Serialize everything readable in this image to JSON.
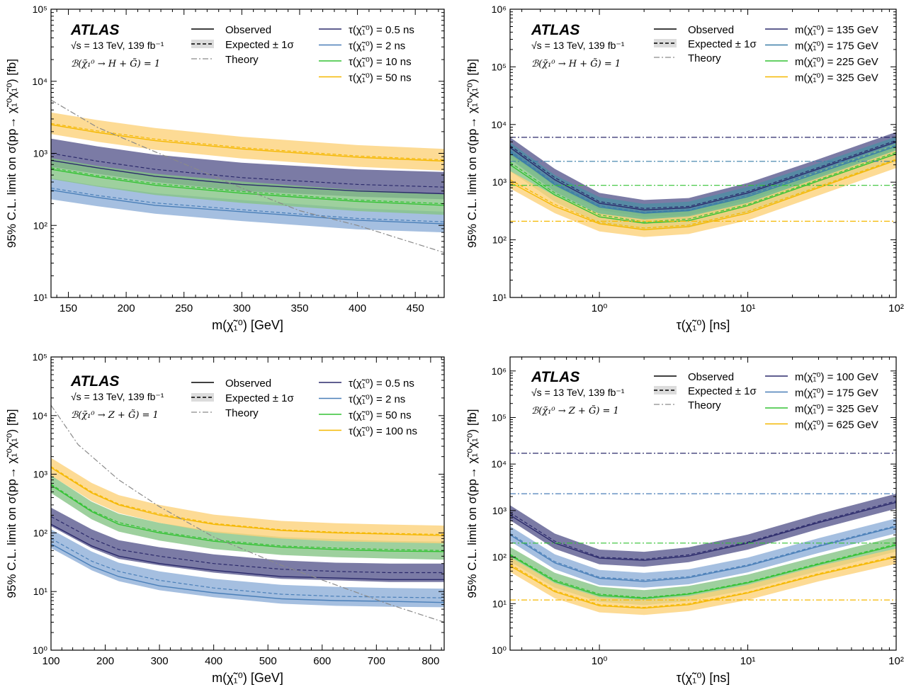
{
  "colors": {
    "navy": "#2b2a6b",
    "navy_band": "#5a5a8e",
    "blue": "#4a7fb8",
    "blue_band": "#8eafd8",
    "teal": "#3a7ea8",
    "teal_band": "#4e8fa4",
    "green": "#33c233",
    "green_band": "#86c486",
    "orange": "#f5b800",
    "orange_band": "#fdd27a",
    "theory": "#8a8a8a"
  },
  "chart_data": [
    {
      "id": "tl",
      "type": "line",
      "atlas": "ATLAS",
      "energy": "√s = 13 TeV, 139 fb⁻¹",
      "branching": "ℬ(χ̃₁⁰ → H + G̃) = 1",
      "legend_common": [
        "Observed",
        "Expected ± 1σ",
        "Theory"
      ],
      "xlabel": "m(χ̃₁⁰) [GeV]",
      "ylabel": "95% C.L. limit on σ(pp→ χ̃₁⁰χ̃₁⁰) [fb]",
      "xscale": "linear",
      "xlim": [
        135,
        475
      ],
      "yscale": "log",
      "ylim": [
        10,
        100000
      ],
      "xticks": [
        150,
        200,
        250,
        300,
        350,
        400,
        450
      ],
      "xtick_labels": [
        "150",
        "200",
        "250",
        "300",
        "350",
        "400",
        "450"
      ],
      "yticks": [
        10,
        100,
        1000,
        10000,
        100000
      ],
      "ytick_labels": [
        "10¹",
        "10²",
        "10³",
        "10⁴",
        "10⁵"
      ],
      "theory": {
        "x": [
          135,
          175,
          225,
          300,
          350,
          400,
          475
        ],
        "y": [
          5500,
          2300,
          1050,
          330,
          160,
          100,
          42
        ]
      },
      "series": [
        {
          "name": "τ(χ̃₁⁰) = 0.5 ns",
          "color": "navy",
          "band_color": "navy_band",
          "x": [
            135,
            175,
            225,
            300,
            400,
            475
          ],
          "obs": [
            800,
            630,
            480,
            370,
            300,
            275
          ],
          "exp": [
            1000,
            780,
            600,
            460,
            370,
            340
          ],
          "lo": [
            650,
            520,
            400,
            300,
            250,
            230
          ],
          "hi": [
            1600,
            1250,
            960,
            740,
            600,
            550
          ]
        },
        {
          "name": "τ(χ̃₁⁰) = 2 ns",
          "color": "blue",
          "band_color": "blue_band",
          "x": [
            135,
            175,
            225,
            300,
            400,
            475
          ],
          "obs": [
            310,
            245,
            190,
            155,
            118,
            105
          ],
          "exp": [
            330,
            260,
            205,
            165,
            125,
            112
          ],
          "lo": [
            230,
            185,
            145,
            115,
            88,
            80
          ],
          "hi": [
            450,
            355,
            280,
            225,
            172,
            155
          ]
        },
        {
          "name": "τ(χ̃₁⁰) = 10 ns",
          "color": "green",
          "band_color": "green_band",
          "x": [
            135,
            175,
            225,
            300,
            400,
            475
          ],
          "obs": [
            600,
            470,
            360,
            280,
            215,
            190
          ],
          "exp": [
            630,
            490,
            380,
            295,
            225,
            200
          ],
          "lo": [
            440,
            345,
            265,
            205,
            158,
            140
          ],
          "hi": [
            860,
            670,
            520,
            405,
            310,
            275
          ]
        },
        {
          "name": "τ(χ̃₁⁰) = 50 ns",
          "color": "orange",
          "band_color": "orange_band",
          "x": [
            135,
            175,
            225,
            300,
            400,
            475
          ],
          "obs": [
            2500,
            1950,
            1500,
            1150,
            880,
            780
          ],
          "exp": [
            2600,
            2050,
            1580,
            1200,
            920,
            810
          ],
          "lo": [
            1850,
            1450,
            1120,
            850,
            650,
            575
          ],
          "hi": [
            3700,
            2900,
            2250,
            1700,
            1300,
            1150
          ]
        }
      ]
    },
    {
      "id": "tr",
      "type": "line",
      "atlas": "ATLAS",
      "energy": "√s = 13 TeV, 139 fb⁻¹",
      "branching": "ℬ(χ̃₁⁰ → H + G̃) = 1",
      "legend_common": [
        "Observed",
        "Expected ± 1σ",
        "Theory"
      ],
      "xlabel": "τ(χ̃₁⁰) [ns]",
      "ylabel": "95% C.L. limit on σ(pp→ χ̃₁⁰χ̃₁⁰) [fb]",
      "xscale": "log",
      "xlim": [
        0.25,
        100
      ],
      "yscale": "log",
      "ylim": [
        10,
        1000000
      ],
      "xticks": [
        1,
        10,
        100
      ],
      "xtick_labels": [
        "10⁰",
        "10¹",
        "10²"
      ],
      "yticks": [
        10,
        100,
        1000,
        10000,
        100000,
        1000000
      ],
      "ytick_labels": [
        "10¹",
        "10²",
        "10³",
        "10⁴",
        "10⁵",
        "10⁶"
      ],
      "series": [
        {
          "name": "m(χ̃₁⁰) = 135 GeV",
          "color": "navy",
          "band_color": "navy_band",
          "theory": 6000,
          "x": [
            0.25,
            0.5,
            1,
            2,
            4,
            10,
            30,
            100
          ],
          "obs": [
            4000,
            1100,
            430,
            330,
            360,
            650,
            1700,
            5000
          ],
          "exp": [
            4300,
            1200,
            460,
            350,
            380,
            690,
            1800,
            5300
          ],
          "lo": [
            3000,
            850,
            330,
            250,
            270,
            490,
            1280,
            3800
          ],
          "hi": [
            6000,
            1700,
            650,
            490,
            530,
            970,
            2500,
            7400
          ]
        },
        {
          "name": "m(χ̃₁⁰) = 175 GeV",
          "color": "teal",
          "band_color": "teal_band",
          "theory": 2300,
          "x": [
            0.25,
            0.5,
            1,
            2,
            4,
            10,
            30,
            100
          ],
          "obs": [
            3300,
            900,
            370,
            290,
            320,
            560,
            1450,
            4200
          ],
          "exp": [
            3500,
            950,
            390,
            300,
            330,
            590,
            1520,
            4400
          ],
          "lo": [
            2500,
            680,
            280,
            215,
            235,
            420,
            1080,
            3150
          ],
          "hi": [
            4900,
            1330,
            550,
            420,
            460,
            830,
            2130,
            6150
          ]
        },
        {
          "name": "m(χ̃₁⁰) = 225 GeV",
          "color": "green",
          "band_color": "green_band",
          "theory": 880,
          "x": [
            0.25,
            0.5,
            1,
            2,
            4,
            10,
            30,
            100
          ],
          "obs": [
            2000,
            600,
            250,
            195,
            215,
            390,
            1050,
            3100
          ],
          "exp": [
            2200,
            650,
            270,
            205,
            230,
            410,
            1100,
            3300
          ],
          "lo": [
            1550,
            460,
            190,
            145,
            162,
            290,
            780,
            2330
          ],
          "hi": [
            3100,
            920,
            380,
            290,
            325,
            580,
            1560,
            4650
          ]
        },
        {
          "name": "m(χ̃₁⁰) = 325 GeV",
          "color": "orange",
          "band_color": "orange_band",
          "theory": 210,
          "x": [
            0.25,
            0.5,
            1,
            2,
            4,
            10,
            30,
            100
          ],
          "obs": [
            1000,
            380,
            190,
            150,
            170,
            290,
            800,
            2400
          ],
          "exp": [
            1100,
            410,
            200,
            160,
            180,
            310,
            840,
            2500
          ],
          "lo": [
            780,
            290,
            140,
            112,
            126,
            218,
            590,
            1760
          ],
          "hi": [
            1560,
            580,
            285,
            226,
            255,
            440,
            1190,
            3550
          ]
        }
      ]
    },
    {
      "id": "bl",
      "type": "line",
      "atlas": "ATLAS",
      "energy": "√s = 13 TeV, 139 fb⁻¹",
      "branching": "ℬ(χ̃₁⁰ → Z + G̃) = 1",
      "legend_common": [
        "Observed",
        "Expected ± 1σ",
        "Theory"
      ],
      "xlabel": "m(χ̃₁⁰) [GeV]",
      "ylabel": "95% C.L. limit on σ(pp→ χ̃₁⁰χ̃₁⁰) [fb]",
      "xscale": "linear",
      "xlim": [
        100,
        825
      ],
      "yscale": "log",
      "ylim": [
        1,
        100000
      ],
      "xticks": [
        100,
        200,
        300,
        400,
        500,
        600,
        700,
        800
      ],
      "xtick_labels": [
        "100",
        "200",
        "300",
        "400",
        "500",
        "600",
        "700",
        "800"
      ],
      "yticks": [
        1,
        10,
        100,
        1000,
        10000,
        100000
      ],
      "ytick_labels": [
        "10⁰",
        "10¹",
        "10²",
        "10³",
        "10⁴",
        "10⁵"
      ],
      "theory": {
        "x": [
          100,
          150,
          225,
          300,
          400,
          525,
          625,
          725,
          825
        ],
        "y": [
          15000,
          3200,
          800,
          280,
          85,
          28,
          13,
          6,
          3
        ]
      },
      "series": [
        {
          "name": "τ(χ̃₁⁰) = 0.5 ns",
          "color": "navy",
          "band_color": "navy_band",
          "x": [
            100,
            175,
            225,
            300,
            400,
            525,
            625,
            725,
            825
          ],
          "obs": [
            140,
            60,
            40,
            30,
            23,
            18,
            17,
            16,
            16
          ],
          "exp": [
            190,
            80,
            52,
            40,
            30,
            24,
            22,
            21,
            21
          ],
          "lo": [
            130,
            55,
            36,
            28,
            21,
            16.5,
            15.5,
            14.5,
            14.5
          ],
          "hi": [
            270,
            115,
            75,
            57,
            43,
            34,
            31,
            30,
            30
          ]
        },
        {
          "name": "τ(χ̃₁⁰) = 2 ns",
          "color": "blue",
          "band_color": "blue_band",
          "x": [
            100,
            175,
            225,
            300,
            400,
            525,
            625,
            725,
            825
          ],
          "obs": [
            65,
            27,
            18,
            12.5,
            9.5,
            7.5,
            7,
            6.8,
            6.5
          ],
          "exp": [
            80,
            33,
            22,
            15.5,
            11.5,
            9,
            8.3,
            8,
            7.8
          ],
          "lo": [
            55,
            23,
            15,
            10.5,
            8,
            6.2,
            5.7,
            5.5,
            5.4
          ],
          "hi": [
            115,
            48,
            31,
            22,
            16.5,
            13,
            12,
            11.5,
            11.2
          ]
        },
        {
          "name": "τ(χ̃₁⁰) = 50 ns",
          "color": "green",
          "band_color": "green_band",
          "x": [
            100,
            175,
            225,
            300,
            400,
            525,
            625,
            725,
            825
          ],
          "obs": [
            650,
            230,
            140,
            100,
            72,
            57,
            52,
            49,
            48
          ],
          "exp": [
            680,
            240,
            150,
            105,
            76,
            60,
            55,
            52,
            50
          ],
          "lo": [
            480,
            170,
            105,
            74,
            53,
            42,
            38.5,
            36.5,
            35
          ],
          "hi": [
            960,
            340,
            212,
            148,
            107,
            85,
            78,
            73,
            71
          ]
        },
        {
          "name": "τ(χ̃₁⁰) = 100 ns",
          "color": "orange",
          "band_color": "orange_band",
          "x": [
            100,
            175,
            225,
            300,
            400,
            525,
            625,
            725,
            825
          ],
          "obs": [
            1300,
            480,
            300,
            200,
            140,
            110,
            100,
            95,
            90
          ],
          "exp": [
            1350,
            500,
            310,
            210,
            145,
            113,
            103,
            98,
            94
          ],
          "lo": [
            950,
            350,
            218,
            148,
            102,
            80,
            72,
            69,
            66
          ],
          "hi": [
            1900,
            710,
            440,
            300,
            205,
            160,
            146,
            139,
            133
          ]
        }
      ]
    },
    {
      "id": "br",
      "type": "line",
      "atlas": "ATLAS",
      "energy": "√s = 13 TeV, 139 fb⁻¹",
      "branching": "ℬ(χ̃₁⁰ → Z + G̃) = 1",
      "legend_common": [
        "Observed",
        "Expected ± 1σ",
        "Theory"
      ],
      "xlabel": "τ(χ̃₁⁰) [ns]",
      "ylabel": "95% C.L. limit on σ(pp→ χ̃₁⁰χ̃₁⁰) [fb]",
      "xscale": "log",
      "xlim": [
        0.25,
        100
      ],
      "yscale": "log",
      "ylim": [
        1,
        2000000
      ],
      "xticks": [
        1,
        10,
        100
      ],
      "xtick_labels": [
        "10⁰",
        "10¹",
        "10²"
      ],
      "yticks": [
        1,
        10,
        100,
        1000,
        10000,
        100000,
        1000000
      ],
      "ytick_labels": [
        "10⁰",
        "10¹",
        "10²",
        "10³",
        "10⁴",
        "10⁵",
        "10⁶"
      ],
      "series": [
        {
          "name": "m(χ̃₁⁰) = 100 GeV",
          "color": "navy",
          "band_color": "navy_band",
          "theory": 17000,
          "x": [
            0.25,
            0.5,
            1,
            2,
            4,
            10,
            30,
            100
          ],
          "obs": [
            800,
            200,
            95,
            85,
            105,
            200,
            550,
            1500
          ],
          "exp": [
            900,
            220,
            100,
            90,
            112,
            210,
            580,
            1600
          ],
          "lo": [
            620,
            150,
            70,
            62,
            78,
            145,
            400,
            1100
          ],
          "hi": [
            1300,
            320,
            145,
            130,
            162,
            305,
            840,
            2300
          ]
        },
        {
          "name": "m(χ̃₁⁰) = 175 GeV",
          "color": "blue",
          "band_color": "blue_band",
          "theory": 2300,
          "x": [
            0.25,
            0.5,
            1,
            2,
            4,
            10,
            30,
            100
          ],
          "obs": [
            300,
            75,
            35,
            30,
            36,
            65,
            170,
            450
          ],
          "exp": [
            320,
            80,
            37,
            32,
            38,
            68,
            178,
            470
          ],
          "lo": [
            220,
            55,
            25,
            22,
            26,
            47,
            123,
            325
          ],
          "hi": [
            460,
            115,
            53,
            46,
            55,
            98,
            255,
            680
          ]
        },
        {
          "name": "m(χ̃₁⁰) = 325 GeV",
          "color": "green",
          "band_color": "green_band",
          "theory": 200,
          "x": [
            0.25,
            0.5,
            1,
            2,
            4,
            10,
            30,
            100
          ],
          "obs": [
            110,
            30,
            15,
            13,
            16,
            28,
            70,
            180
          ],
          "exp": [
            115,
            32,
            16,
            13.5,
            16.5,
            29,
            73,
            190
          ],
          "lo": [
            80,
            22,
            11,
            9.3,
            11.4,
            20,
            50,
            131
          ],
          "hi": [
            165,
            46,
            23,
            19.5,
            24,
            42,
            105,
            275
          ]
        },
        {
          "name": "m(χ̃₁⁰) = 625 GeV",
          "color": "orange",
          "band_color": "orange_band",
          "theory": 12,
          "x": [
            0.25,
            0.5,
            1,
            2,
            4,
            10,
            30,
            100
          ],
          "obs": [
            65,
            18,
            9,
            8,
            9.5,
            17,
            42,
            100
          ],
          "exp": [
            70,
            19,
            9.5,
            8.3,
            10,
            17.5,
            44,
            105
          ],
          "lo": [
            48,
            13,
            6.5,
            5.7,
            6.9,
            12,
            30,
            72
          ],
          "hi": [
            100,
            27.5,
            13.7,
            12,
            14.5,
            25.3,
            64,
            152
          ]
        }
      ]
    }
  ]
}
